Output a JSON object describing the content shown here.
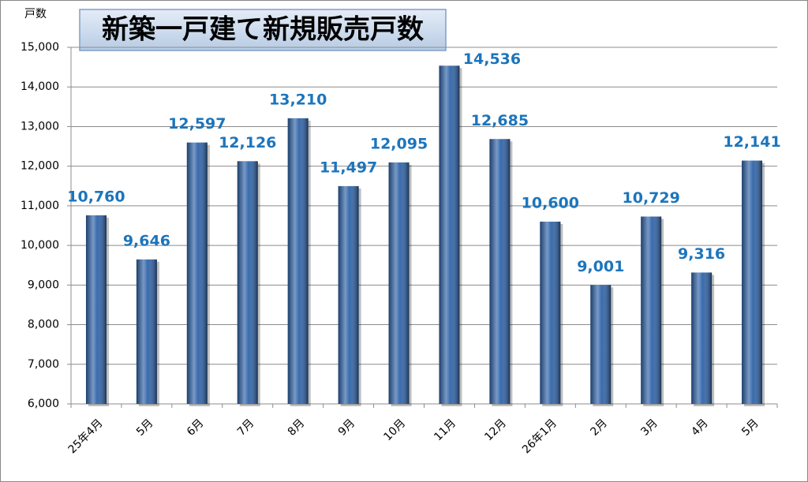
{
  "chart_data": {
    "type": "bar",
    "title": "新築一戸建て新規販売戸数",
    "y_label": "戸数",
    "categories": [
      "25年4月",
      "5月",
      "6月",
      "7月",
      "8月",
      "9月",
      "10月",
      "11月",
      "12月",
      "26年1月",
      "2月",
      "3月",
      "4月",
      "5月"
    ],
    "values": [
      10760,
      9646,
      12597,
      12126,
      13210,
      11497,
      12095,
      14536,
      12685,
      10600,
      9001,
      10729,
      9316,
      12141
    ],
    "value_labels": [
      "10,760",
      "9,646",
      "12,597",
      "12,126",
      "13,210",
      "11,497",
      "12,095",
      "14,536",
      "12,685",
      "10,600",
      "9,001",
      "10,729",
      "9,316",
      "12,141"
    ],
    "color": "#2f63a8",
    "ylim": [
      6000,
      15000
    ],
    "yticks": [
      {
        "value": 6000,
        "label": "6,000"
      },
      {
        "value": 7000,
        "label": "7,000"
      },
      {
        "value": 8000,
        "label": "8,000"
      },
      {
        "value": 9000,
        "label": "9,000"
      },
      {
        "value": 10000,
        "label": "10,000"
      },
      {
        "value": 11000,
        "label": "11,000"
      },
      {
        "value": 12000,
        "label": "12,000"
      },
      {
        "value": 13000,
        "label": "13,000"
      },
      {
        "value": 14000,
        "label": "14,000"
      },
      {
        "value": 15000,
        "label": "15,000"
      }
    ],
    "grid": true
  }
}
